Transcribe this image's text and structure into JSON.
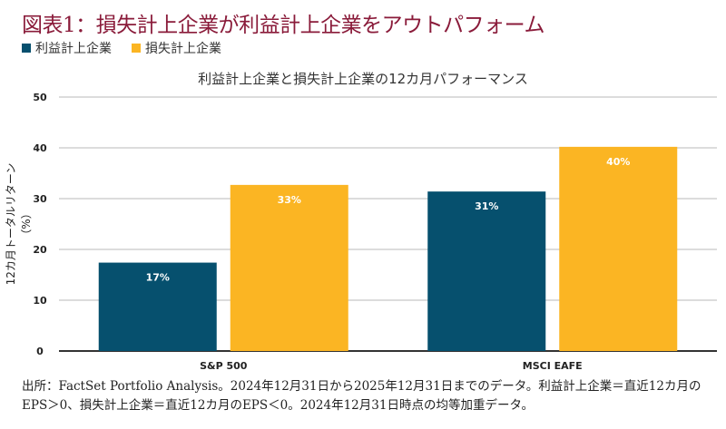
{
  "title": "図表1：損失計上企業が利益計上企業をアウトパフォーム",
  "note": "出所：FactSet Portfolio Analysis。2024年12月31日から2025年12月31日までのデータ。利益計上企業＝直近12カ月のEPS＞0、損失計上企業＝直近12カ月のEPS＜0。2024年12月31日時点の均等加重データ。",
  "chart_data": {
    "type": "bar",
    "title": "利益計上企業と損失計上企業の12カ月パフォーマンス",
    "ylabel": "12カ月トータルリターン（%）",
    "xlabel": "",
    "ylim": [
      0,
      50
    ],
    "yticks": [
      0,
      10,
      20,
      30,
      40,
      50
    ],
    "grid": true,
    "legend_position": "top-left",
    "categories": [
      "S&P 500",
      "MSCI EAFE"
    ],
    "series": [
      {
        "name": "利益計上企業",
        "color": "#06506e",
        "values": [
          17.4,
          31.4
        ],
        "labels": [
          "17%",
          "31%"
        ]
      },
      {
        "name": "損失計上企業",
        "color": "#fbb523",
        "values": [
          32.7,
          40.2
        ],
        "labels": [
          "33%",
          "40%"
        ]
      }
    ]
  }
}
